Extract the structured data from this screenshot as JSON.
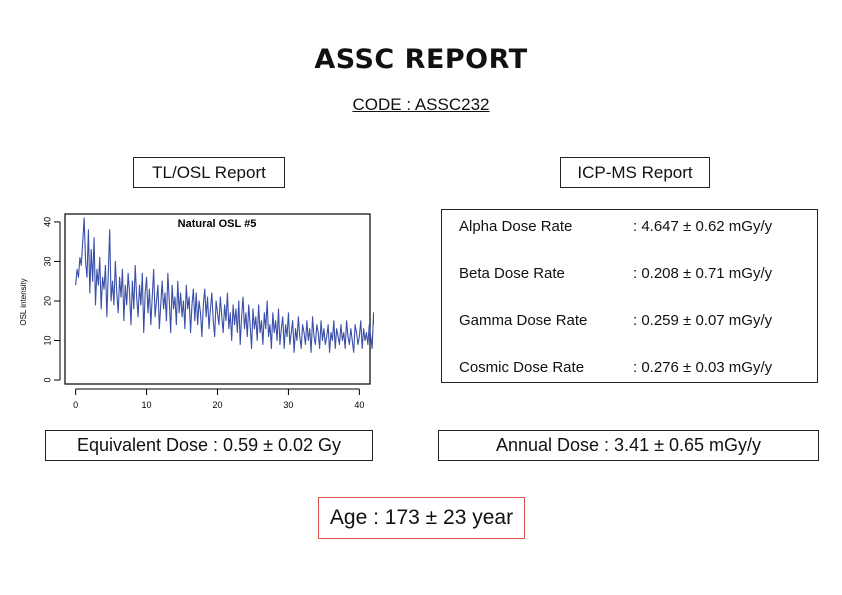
{
  "report": {
    "title": "ASSC REPORT",
    "code": "CODE : ASSC232"
  },
  "sections": {
    "tlosl_title": "TL/OSL Report",
    "icpms_title": "ICP-MS Report"
  },
  "dose_rates": [
    {
      "label": "Alpha Dose Rate",
      "value": ": 4.647 ± 0.62 mGy/y"
    },
    {
      "label": "Beta Dose Rate",
      "value": ": 0.208 ± 0.71 mGy/y"
    },
    {
      "label": "Gamma Dose Rate",
      "value": ": 0.259 ± 0.07 mGy/y"
    },
    {
      "label": "Cosmic Dose Rate",
      "value": ": 0.276 ± 0.03 mGy/y"
    }
  ],
  "results": {
    "equivalent_dose": "Equivalent Dose : 0.59 ± 0.02 Gy",
    "annual_dose": "Annual Dose : 3.41 ± 0.65 mGy/y",
    "age": "Age : 173 ± 23 year"
  },
  "colors": {
    "line": "#3a4fa8",
    "age_border": "#d9534f"
  },
  "chart_data": {
    "type": "line",
    "title": "Natural OSL #5",
    "xlabel": "",
    "ylabel": "OSL intensity",
    "xlim": [
      -1.5,
      41.5
    ],
    "ylim": [
      -1,
      42
    ],
    "x_ticks": [
      0,
      10,
      20,
      30,
      40
    ],
    "y_ticks": [
      0,
      10,
      20,
      30,
      40
    ],
    "grid": false,
    "x_start": 0,
    "x_step": 0.2,
    "series": [
      {
        "values": [
          24,
          28,
          26,
          31,
          29,
          35,
          41,
          30,
          26,
          38,
          22,
          33,
          25,
          36,
          19,
          28,
          24,
          31,
          18,
          26,
          23,
          29,
          16,
          27,
          38,
          20,
          25,
          19,
          30,
          22,
          17,
          26,
          21,
          28,
          15,
          24,
          19,
          27,
          22,
          14,
          25,
          18,
          29,
          21,
          16,
          24,
          19,
          27,
          12,
          22,
          26,
          17,
          23,
          14,
          21,
          28,
          16,
          20,
          24,
          13,
          19,
          25,
          18,
          22,
          15,
          27,
          20,
          12,
          24,
          18,
          21,
          14,
          25,
          17,
          22,
          16,
          20,
          13,
          24,
          18,
          21,
          12,
          19,
          23,
          15,
          22,
          14,
          20,
          17,
          11,
          19,
          23,
          16,
          21,
          13,
          18,
          22,
          15,
          11,
          20,
          17,
          14,
          21,
          16,
          12,
          19,
          15,
          22,
          13,
          17,
          10,
          19,
          14,
          18,
          12,
          20,
          9,
          16,
          21,
          13,
          17,
          11,
          19,
          14,
          8,
          18,
          13,
          16,
          10,
          19,
          12,
          15,
          9,
          17,
          13,
          20,
          11,
          14,
          8,
          17,
          12,
          15,
          10,
          18,
          9,
          13,
          16,
          8,
          14,
          11,
          17,
          9,
          12,
          15,
          7,
          13,
          10,
          16,
          11,
          8,
          14,
          12,
          9,
          15,
          10,
          13,
          7,
          16,
          11,
          9,
          14,
          12,
          8,
          15,
          10,
          13,
          9,
          11,
          14,
          7,
          12,
          10,
          15,
          8,
          13,
          11,
          9,
          14,
          10,
          12,
          8,
          15,
          11,
          9,
          13,
          10,
          7,
          14,
          12,
          9,
          11,
          15,
          8,
          13,
          10,
          12,
          9,
          14,
          11,
          8,
          17,
          12,
          10,
          19,
          9,
          13,
          11,
          16,
          8,
          14,
          12,
          10,
          18,
          9,
          13,
          11,
          15,
          8,
          12,
          10,
          14,
          9,
          13,
          7,
          12,
          10,
          15,
          11,
          8,
          13,
          10,
          12,
          9,
          14,
          8,
          11,
          13,
          10,
          12,
          9,
          15,
          11,
          8,
          13,
          10,
          12,
          9,
          14,
          11,
          7,
          13,
          10,
          12,
          9,
          14,
          8,
          11,
          13,
          10,
          12,
          9,
          15,
          11,
          8,
          12,
          10,
          14,
          9,
          13,
          11,
          7,
          12,
          10,
          14,
          9,
          13,
          8,
          11,
          12,
          10,
          14,
          9,
          12,
          8,
          11,
          13,
          10,
          12,
          9,
          14,
          11,
          8,
          12,
          10,
          13,
          9,
          11,
          12,
          10,
          14,
          8,
          13,
          9,
          11,
          12,
          10,
          13,
          9,
          12,
          8,
          11,
          13,
          10,
          12,
          9,
          11,
          10,
          13,
          8,
          12,
          10,
          11,
          9,
          13,
          10,
          12,
          8,
          11,
          13,
          9,
          12,
          10,
          11,
          13,
          9,
          12,
          10,
          11,
          8,
          13,
          10,
          12,
          9,
          11,
          13,
          10,
          12,
          9,
          11,
          10,
          12,
          9,
          14,
          10,
          11,
          9,
          12,
          10,
          13,
          9,
          11,
          10,
          12,
          8,
          11,
          10,
          13,
          9,
          11,
          10,
          12,
          9,
          11,
          10,
          12,
          9,
          10,
          11,
          9,
          12,
          10,
          11,
          9,
          12,
          10,
          11,
          9,
          10,
          12,
          9,
          11,
          10,
          16,
          9,
          12,
          17,
          10,
          11,
          9,
          12,
          10,
          11,
          9,
          12,
          10,
          11,
          9,
          10,
          12,
          9,
          11,
          10,
          12,
          9,
          11,
          10,
          12,
          9,
          16,
          10,
          11,
          9,
          14,
          8,
          12,
          10,
          17,
          9,
          8,
          11,
          7,
          9,
          10
        ]
      }
    ]
  }
}
